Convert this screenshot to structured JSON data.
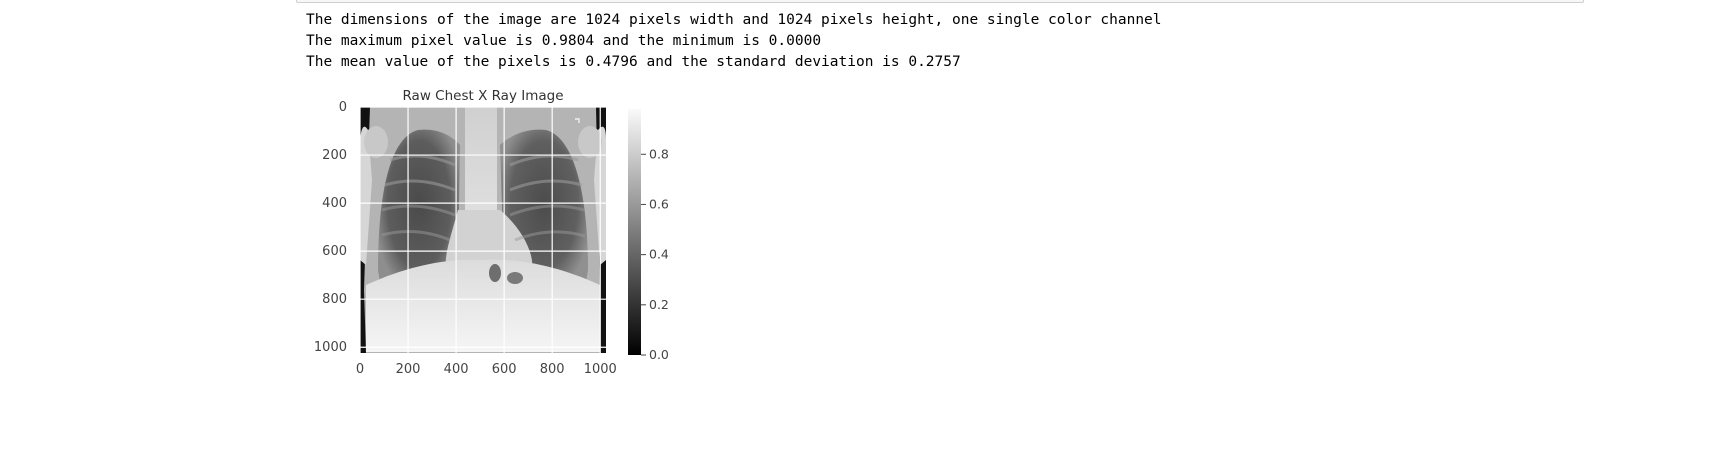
{
  "notebook": {
    "output_lines": [
      "The dimensions of the image are 1024 pixels width and 1024 pixels height, one single color channel",
      "The maximum pixel value is 0.9804 and the minimum is 0.0000",
      "The mean value of the pixels is 0.4796 and the standard deviation is 0.2757"
    ]
  },
  "chart_data": {
    "type": "heatmap",
    "title": "Raw Chest X Ray Image",
    "xlabel": "",
    "ylabel": "",
    "x_ticks": [
      0,
      200,
      400,
      600,
      800,
      1000
    ],
    "y_ticks": [
      0,
      200,
      400,
      600,
      800,
      1000
    ],
    "xlim": [
      0,
      1024
    ],
    "ylim": [
      1024,
      0
    ],
    "grid": true,
    "colormap": "gray",
    "colorbar": {
      "ticks": [
        "0.0",
        "0.2",
        "0.4",
        "0.6",
        "0.8"
      ],
      "range": [
        0.0,
        0.9804
      ]
    }
  }
}
